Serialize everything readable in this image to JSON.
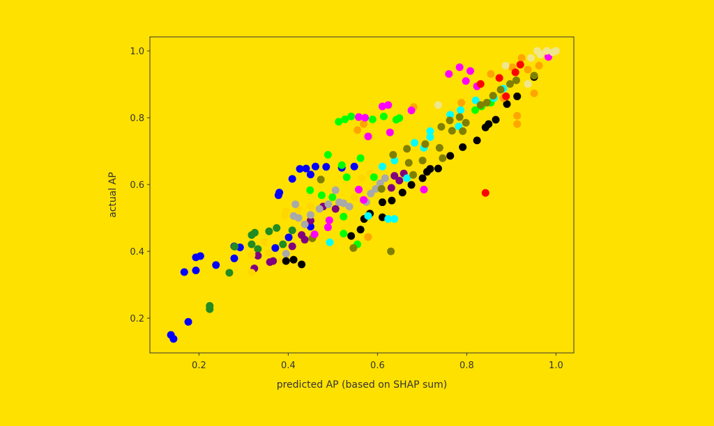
{
  "chart_data": {
    "type": "scatter",
    "title": "",
    "xlabel": "predicted AP (based on SHAP sum)",
    "ylabel": "actual AP",
    "xlim": [
      0.09,
      1.04
    ],
    "ylim": [
      0.096,
      1.042
    ],
    "xticks": [
      0.2,
      0.4,
      0.6,
      0.8,
      1.0
    ],
    "yticks": [
      0.2,
      0.4,
      0.6,
      0.8,
      1.0
    ],
    "xtick_labels": [
      "0.2",
      "0.4",
      "0.6",
      "0.8",
      "1.0"
    ],
    "ytick_labels": [
      "0.2",
      "0.4",
      "0.6",
      "0.8",
      "1.0"
    ],
    "grid": false,
    "legend": "none",
    "background": "#ffe100",
    "series": [
      {
        "name": "blue",
        "color": "#0000ff",
        "points": [
          [
            0.137,
            0.15
          ],
          [
            0.143,
            0.138
          ],
          [
            0.176,
            0.189
          ],
          [
            0.167,
            0.338
          ],
          [
            0.193,
            0.343
          ],
          [
            0.193,
            0.382
          ],
          [
            0.203,
            0.386
          ],
          [
            0.238,
            0.359
          ],
          [
            0.279,
            0.379
          ],
          [
            0.279,
            0.415
          ],
          [
            0.292,
            0.412
          ],
          [
            0.38,
            0.576
          ],
          [
            0.378,
            0.568
          ],
          [
            0.409,
            0.617
          ],
          [
            0.426,
            0.647
          ],
          [
            0.44,
            0.648
          ],
          [
            0.45,
            0.63
          ],
          [
            0.461,
            0.654
          ],
          [
            0.485,
            0.653
          ],
          [
            0.52,
            0.65
          ],
          [
            0.548,
            0.654
          ],
          [
            0.401,
            0.442
          ],
          [
            0.371,
            0.41
          ],
          [
            0.45,
            0.474
          ]
        ]
      },
      {
        "name": "forestgreen",
        "color": "#228b22",
        "points": [
          [
            0.224,
            0.237
          ],
          [
            0.224,
            0.227
          ],
          [
            0.268,
            0.336
          ],
          [
            0.318,
            0.449
          ],
          [
            0.325,
            0.456
          ],
          [
            0.318,
            0.421
          ],
          [
            0.357,
            0.46
          ],
          [
            0.374,
            0.47
          ],
          [
            0.388,
            0.421
          ],
          [
            0.28,
            0.414
          ],
          [
            0.332,
            0.407
          ],
          [
            0.409,
            0.463
          ]
        ]
      },
      {
        "name": "purple",
        "color": "#800080",
        "points": [
          [
            0.332,
            0.387
          ],
          [
            0.324,
            0.349
          ],
          [
            0.359,
            0.368
          ],
          [
            0.366,
            0.371
          ],
          [
            0.409,
            0.415
          ],
          [
            0.43,
            0.449
          ],
          [
            0.437,
            0.435
          ],
          [
            0.478,
            0.534
          ],
          [
            0.506,
            0.527
          ],
          [
            0.638,
            0.626
          ],
          [
            0.649,
            0.612
          ],
          [
            0.659,
            0.633
          ],
          [
            0.631,
            0.59
          ],
          [
            0.45,
            0.492
          ]
        ]
      },
      {
        "name": "gold",
        "color": "#ffd700",
        "points": [
          [
            0.318,
            0.336
          ],
          [
            0.318,
            0.389
          ],
          [
            0.357,
            0.394
          ],
          [
            0.385,
            0.371
          ],
          [
            0.392,
            0.506
          ],
          [
            0.395,
            0.52
          ],
          [
            0.45,
            0.535
          ],
          [
            0.583,
            0.633
          ],
          [
            0.423,
            0.527
          ],
          [
            0.565,
            0.619
          ],
          [
            0.346,
            0.428
          ],
          [
            0.548,
            0.562
          ]
        ]
      },
      {
        "name": "darkgray",
        "color": "#a9a9a9",
        "points": [
          [
            0.412,
            0.506
          ],
          [
            0.423,
            0.5
          ],
          [
            0.45,
            0.509
          ],
          [
            0.47,
            0.527
          ],
          [
            0.49,
            0.541
          ],
          [
            0.514,
            0.547
          ],
          [
            0.524,
            0.544
          ],
          [
            0.537,
            0.534
          ],
          [
            0.575,
            0.548
          ],
          [
            0.585,
            0.573
          ],
          [
            0.596,
            0.587
          ],
          [
            0.606,
            0.604
          ],
          [
            0.617,
            0.619
          ],
          [
            0.506,
            0.583
          ],
          [
            0.395,
            0.393
          ],
          [
            0.437,
            0.481
          ],
          [
            0.416,
            0.541
          ]
        ]
      },
      {
        "name": "black",
        "color": "#000000",
        "points": [
          [
            0.395,
            0.371
          ],
          [
            0.412,
            0.375
          ],
          [
            0.43,
            0.361
          ],
          [
            0.541,
            0.446
          ],
          [
            0.562,
            0.465
          ],
          [
            0.57,
            0.497
          ],
          [
            0.583,
            0.513
          ],
          [
            0.611,
            0.502
          ],
          [
            0.611,
            0.547
          ],
          [
            0.632,
            0.552
          ],
          [
            0.656,
            0.576
          ],
          [
            0.676,
            0.599
          ],
          [
            0.701,
            0.619
          ],
          [
            0.711,
            0.638
          ],
          [
            0.718,
            0.647
          ],
          [
            0.736,
            0.648
          ],
          [
            0.763,
            0.686
          ],
          [
            0.791,
            0.712
          ],
          [
            0.823,
            0.732
          ],
          [
            0.842,
            0.771
          ],
          [
            0.849,
            0.781
          ],
          [
            0.865,
            0.794
          ],
          [
            0.89,
            0.841
          ],
          [
            0.913,
            0.864
          ],
          [
            0.951,
            0.922
          ]
        ]
      },
      {
        "name": "lime",
        "color": "#00ff00",
        "points": [
          [
            0.489,
            0.689
          ],
          [
            0.52,
            0.658
          ],
          [
            0.562,
            0.679
          ],
          [
            0.531,
            0.622
          ],
          [
            0.449,
            0.583
          ],
          [
            0.475,
            0.568
          ],
          [
            0.499,
            0.562
          ],
          [
            0.524,
            0.504
          ],
          [
            0.524,
            0.453
          ],
          [
            0.555,
            0.421
          ],
          [
            0.513,
            0.788
          ],
          [
            0.527,
            0.795
          ],
          [
            0.541,
            0.804
          ],
          [
            0.589,
            0.795
          ],
          [
            0.614,
            0.804
          ],
          [
            0.642,
            0.794
          ],
          [
            0.649,
            0.799
          ],
          [
            0.592,
            0.622
          ],
          [
            0.819,
            0.823
          ],
          [
            0.833,
            0.834
          ],
          [
            0.854,
            0.845
          ]
        ]
      },
      {
        "name": "cyan",
        "color": "#00ffff",
        "points": [
          [
            0.493,
            0.427
          ],
          [
            0.624,
            0.497
          ],
          [
            0.638,
            0.497
          ],
          [
            0.579,
            0.506
          ],
          [
            0.611,
            0.654
          ],
          [
            0.638,
            0.672
          ],
          [
            0.666,
            0.619
          ],
          [
            0.683,
            0.725
          ],
          [
            0.704,
            0.71
          ],
          [
            0.718,
            0.76
          ],
          [
            0.718,
            0.742
          ],
          [
            0.763,
            0.809
          ],
          [
            0.786,
            0.823
          ],
          [
            0.782,
            0.774
          ],
          [
            0.82,
            0.852
          ],
          [
            0.882,
            0.887
          ],
          [
            0.861,
            0.859
          ]
        ]
      },
      {
        "name": "olive",
        "color": "#808000",
        "points": [
          [
            0.473,
            0.615
          ],
          [
            0.609,
            0.587
          ],
          [
            0.635,
            0.689
          ],
          [
            0.666,
            0.707
          ],
          [
            0.67,
            0.665
          ],
          [
            0.68,
            0.629
          ],
          [
            0.701,
            0.672
          ],
          [
            0.707,
            0.721
          ],
          [
            0.739,
            0.71
          ],
          [
            0.743,
            0.773
          ],
          [
            0.746,
            0.679
          ],
          [
            0.762,
            0.792
          ],
          [
            0.767,
            0.761
          ],
          [
            0.791,
            0.76
          ],
          [
            0.798,
            0.785
          ],
          [
            0.784,
            0.802
          ],
          [
            0.831,
            0.838
          ],
          [
            0.845,
            0.845
          ],
          [
            0.859,
            0.866
          ],
          [
            0.876,
            0.884
          ],
          [
            0.897,
            0.901
          ],
          [
            0.911,
            0.912
          ],
          [
            0.546,
            0.41
          ],
          [
            0.63,
            0.4
          ],
          [
            0.454,
            0.439
          ],
          [
            0.951,
            0.926
          ]
        ]
      },
      {
        "name": "orange",
        "color": "#ffa500",
        "points": [
          [
            0.555,
            0.763
          ],
          [
            0.569,
            0.781
          ],
          [
            0.681,
            0.832
          ],
          [
            0.788,
            0.845
          ],
          [
            0.854,
            0.931
          ],
          [
            0.882,
            0.859
          ],
          [
            0.913,
            0.806
          ],
          [
            0.913,
            0.781
          ],
          [
            0.951,
            0.873
          ],
          [
            0.923,
            0.979
          ],
          [
            0.902,
            0.951
          ],
          [
            0.937,
            0.944
          ],
          [
            0.579,
            0.443
          ],
          [
            0.962,
            0.956
          ]
        ]
      },
      {
        "name": "magenta",
        "color": "#ff00ff",
        "points": [
          [
            0.76,
            0.931
          ],
          [
            0.784,
            0.951
          ],
          [
            0.808,
            0.94
          ],
          [
            0.798,
            0.91
          ],
          [
            0.823,
            0.894
          ],
          [
            0.611,
            0.834
          ],
          [
            0.624,
            0.838
          ],
          [
            0.676,
            0.822
          ],
          [
            0.558,
            0.802
          ],
          [
            0.572,
            0.8
          ],
          [
            0.579,
            0.744
          ],
          [
            0.628,
            0.756
          ],
          [
            0.558,
            0.585
          ],
          [
            0.569,
            0.554
          ],
          [
            0.492,
            0.493
          ],
          [
            0.489,
            0.472
          ],
          [
            0.459,
            0.451
          ],
          [
            0.704,
            0.585
          ],
          [
            0.983,
            0.982
          ]
        ]
      },
      {
        "name": "red",
        "color": "#ff0000",
        "points": [
          [
            0.842,
            0.575
          ],
          [
            0.873,
            0.919
          ],
          [
            0.831,
            0.901
          ],
          [
            0.888,
            0.864
          ],
          [
            0.92,
            0.959
          ],
          [
            0.909,
            0.936
          ]
        ]
      },
      {
        "name": "khaki",
        "color": "#f0e68c",
        "points": [
          [
            0.993,
            0.996
          ],
          [
            0.965,
            0.989
          ],
          [
            0.944,
            0.979
          ],
          [
            0.979,
            1.0
          ],
          [
            0.887,
            0.956
          ],
          [
            0.736,
            0.838
          ],
          [
            0.937,
            0.901
          ],
          [
            0.958,
            1.0
          ],
          [
            1.0,
            1.0
          ]
        ]
      }
    ]
  }
}
